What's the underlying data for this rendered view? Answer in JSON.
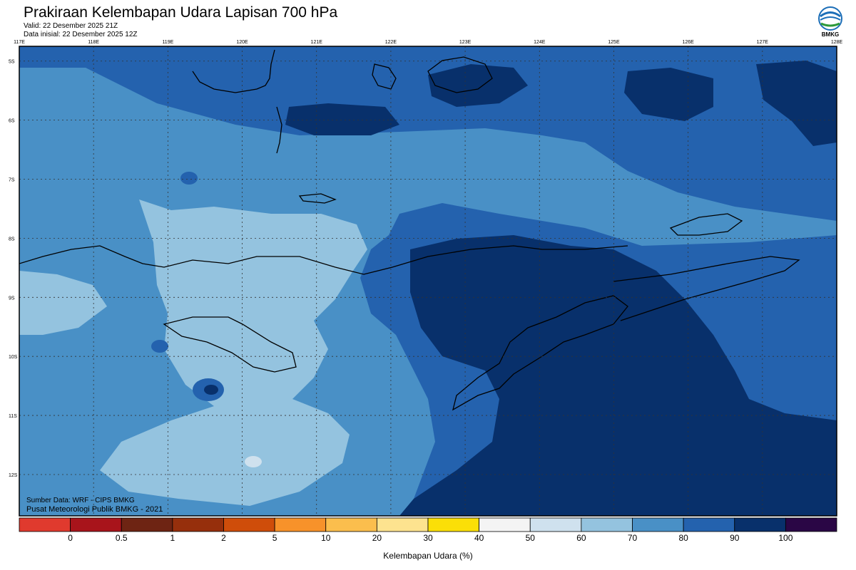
{
  "header": {
    "title": "Prakiraan Kelembapan Udara Lapisan 700 hPa",
    "valid": "Valid: 22 Desember 2025 21Z",
    "initial": "Data inisial: 22 Desember 2025 12Z"
  },
  "logo": {
    "text": "BMKG",
    "icon": "bmkg-logo-icon"
  },
  "map": {
    "lon_ticks": [
      "117E",
      "118E",
      "119E",
      "120E",
      "121E",
      "122E",
      "123E",
      "124E",
      "125E",
      "126E",
      "127E",
      "128E"
    ],
    "lat_ticks": [
      "5S",
      "6S",
      "7S",
      "8S",
      "9S",
      "10S",
      "11S",
      "12S"
    ],
    "lon_range": [
      117,
      128
    ],
    "lat_range": [
      -4.75,
      -12.7
    ],
    "gridlines": true
  },
  "credits": {
    "source": "Sumber Data: WRF - CIPS BMKG",
    "center": "Pusat Meteorologi Publik BMKG - 2021"
  },
  "colorbar": {
    "labels": [
      "0",
      "0.5",
      "1",
      "2",
      "5",
      "10",
      "20",
      "30",
      "40",
      "50",
      "60",
      "70",
      "80",
      "90",
      "100"
    ],
    "colors": [
      "#e03a2e",
      "#a8141b",
      "#6e2413",
      "#962f0c",
      "#cf4d0a",
      "#f7922a",
      "#fbbe4d",
      "#fde38f",
      "#fbdf07",
      "#f4f4f4",
      "#cfe1ee",
      "#94c3df",
      "#4990c6",
      "#2462ae",
      "#08306b",
      "#2a0645"
    ],
    "xlabel": "Kelembapan Udara (%)"
  }
}
